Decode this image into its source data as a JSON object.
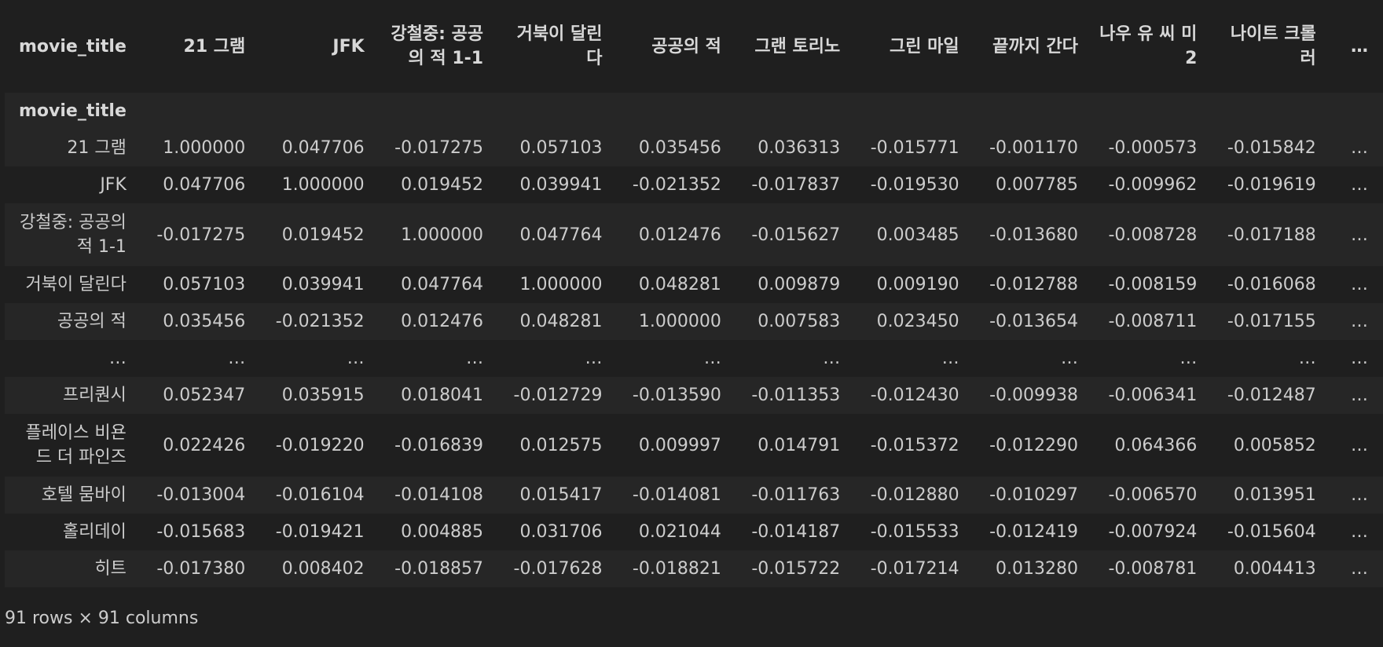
{
  "index_name": "movie_title",
  "columns": [
    "21 그램",
    "JFK",
    "강철중: 공공의 적 1-1",
    "거북이 달린다",
    "공공의 적",
    "그랜 토리노",
    "그린 마일",
    "끝까지 간다",
    "나우 유 씨 미 2",
    "나이트 크롤러",
    "…"
  ],
  "rows": [
    {
      "label": "21 그램",
      "values": [
        "1.000000",
        "0.047706",
        "-0.017275",
        "0.057103",
        "0.035456",
        "0.036313",
        "-0.015771",
        "-0.001170",
        "-0.000573",
        "-0.015842",
        "…"
      ]
    },
    {
      "label": "JFK",
      "values": [
        "0.047706",
        "1.000000",
        "0.019452",
        "0.039941",
        "-0.021352",
        "-0.017837",
        "-0.019530",
        "0.007785",
        "-0.009962",
        "-0.019619",
        "…"
      ]
    },
    {
      "label": "강철중: 공공의 적 1-1",
      "values": [
        "-0.017275",
        "0.019452",
        "1.000000",
        "0.047764",
        "0.012476",
        "-0.015627",
        "0.003485",
        "-0.013680",
        "-0.008728",
        "-0.017188",
        "…"
      ]
    },
    {
      "label": "거북이 달린다",
      "values": [
        "0.057103",
        "0.039941",
        "0.047764",
        "1.000000",
        "0.048281",
        "0.009879",
        "0.009190",
        "-0.012788",
        "-0.008159",
        "-0.016068",
        "…"
      ]
    },
    {
      "label": "공공의 적",
      "values": [
        "0.035456",
        "-0.021352",
        "0.012476",
        "0.048281",
        "1.000000",
        "0.007583",
        "0.023450",
        "-0.013654",
        "-0.008711",
        "-0.017155",
        "…"
      ]
    },
    {
      "label": "…",
      "values": [
        "…",
        "…",
        "…",
        "…",
        "…",
        "…",
        "…",
        "…",
        "…",
        "…",
        "…"
      ]
    },
    {
      "label": "프리퀀시",
      "values": [
        "0.052347",
        "0.035915",
        "0.018041",
        "-0.012729",
        "-0.013590",
        "-0.011353",
        "-0.012430",
        "-0.009938",
        "-0.006341",
        "-0.012487",
        "…"
      ]
    },
    {
      "label": "플레이스 비욘드 더 파인즈",
      "values": [
        "0.022426",
        "-0.019220",
        "-0.016839",
        "0.012575",
        "0.009997",
        "0.014791",
        "-0.015372",
        "-0.012290",
        "0.064366",
        "0.005852",
        "…"
      ]
    },
    {
      "label": "호텔 뭄바이",
      "values": [
        "-0.013004",
        "-0.016104",
        "-0.014108",
        "0.015417",
        "-0.014081",
        "-0.011763",
        "-0.012880",
        "-0.010297",
        "-0.006570",
        "0.013951",
        "…"
      ]
    },
    {
      "label": "홀리데이",
      "values": [
        "-0.015683",
        "-0.019421",
        "0.004885",
        "0.031706",
        "0.021044",
        "-0.014187",
        "-0.015533",
        "-0.012419",
        "-0.007924",
        "-0.015604",
        "…"
      ]
    },
    {
      "label": "히트",
      "values": [
        "-0.017380",
        "0.008402",
        "-0.018857",
        "-0.017628",
        "-0.018821",
        "-0.015722",
        "-0.017214",
        "0.013280",
        "-0.008781",
        "0.004413",
        "…"
      ]
    }
  ],
  "footer": "91 rows × 91 columns",
  "colors": {
    "background": "#1f1f1f",
    "stripe": "#262626",
    "text": "#cccccc"
  }
}
